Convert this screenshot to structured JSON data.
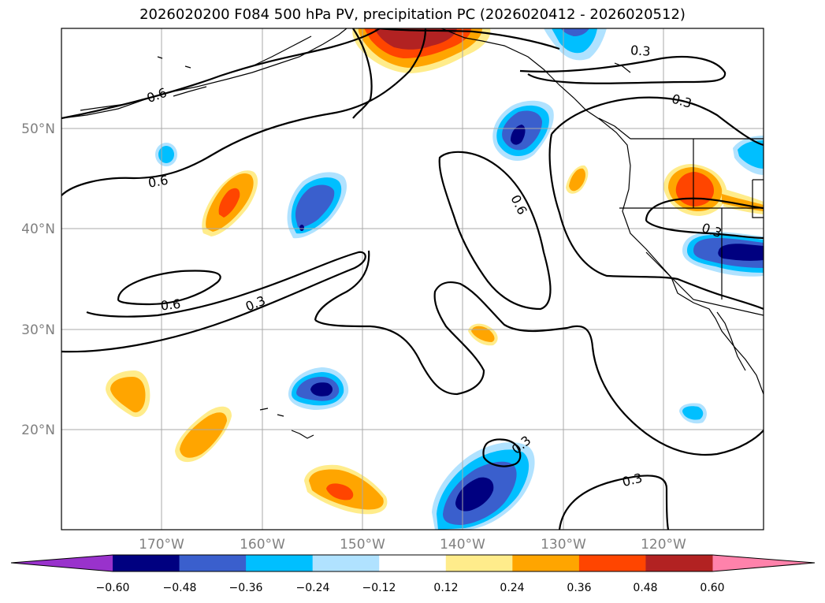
{
  "title": "2026020200 F084 500 hPa PV, precipitation PC (2026020412 - 2026020512)",
  "map": {
    "lon_labels": [
      "170°W",
      "160°W",
      "150°W",
      "140°W",
      "130°W",
      "120°W"
    ],
    "lat_labels": [
      "50°N",
      "40°N",
      "30°N",
      "20°N"
    ]
  },
  "contour_labels": [
    "0.6",
    "0.6",
    "0.6",
    "0.6",
    "0.3",
    "0.3",
    "0.3",
    "0.3",
    "0.3",
    "0.3"
  ],
  "colorbar": {
    "ticks": [
      "−0.60",
      "−0.48",
      "−0.36",
      "−0.24",
      "−0.12",
      "0.12",
      "0.24",
      "0.36",
      "0.48",
      "0.60"
    ],
    "colors": {
      "below": "#9932cc",
      "bins": [
        "#000080",
        "#3a5fcd",
        "#00bfff",
        "#b0e2ff",
        "#ffffff",
        "#ffec8b",
        "#ffa500",
        "#ff4500",
        "#b22222"
      ],
      "above": "#ff82ab"
    }
  },
  "chart_data": {
    "type": "heatmap",
    "title": "2026020200 F084 500 hPa PV, precipitation PC (2026020412 - 2026020512)",
    "lon_range": [
      -180,
      -110
    ],
    "lat_range": [
      10,
      60
    ],
    "levels": [
      -0.6,
      -0.48,
      -0.36,
      -0.24,
      -0.12,
      0.12,
      0.24,
      0.36,
      0.48,
      0.6
    ],
    "pv_contours": [
      0.3,
      0.6
    ],
    "precip_features": [
      {
        "lon": -166,
        "lat": 42,
        "value": 0.4
      },
      {
        "lon": -152,
        "lat": 41,
        "value": -0.45
      },
      {
        "lon": -134,
        "lat": 48,
        "value": -0.6
      },
      {
        "lon": -115,
        "lat": 44,
        "value": 0.4
      },
      {
        "lon": -114,
        "lat": 37,
        "value": -0.6
      },
      {
        "lon": -154,
        "lat": 24,
        "value": -0.5
      },
      {
        "lon": -175,
        "lat": 23,
        "value": 0.3
      },
      {
        "lon": -166,
        "lat": 19,
        "value": 0.3
      },
      {
        "lon": -150,
        "lat": 14,
        "value": 0.4
      },
      {
        "lon": -136,
        "lat": 13,
        "value": -0.55
      },
      {
        "lon": -146,
        "lat": 58,
        "value": 0.5
      }
    ]
  }
}
